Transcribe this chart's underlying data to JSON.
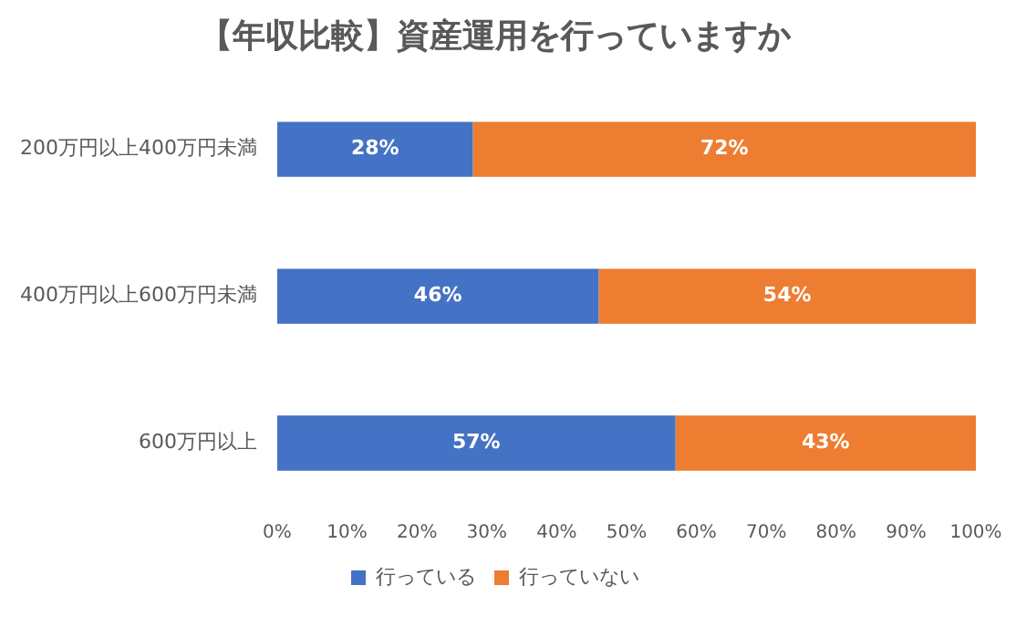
{
  "chart_data": {
    "type": "bar",
    "orientation": "horizontal",
    "stacked": true,
    "title": "【年収比較】資産運用を行っていますか",
    "categories": [
      "200万円以上400万円未満",
      "400万円以上600万円未満",
      "600万円以上"
    ],
    "series": [
      {
        "name": "行っている",
        "color": "#4472c4",
        "values": [
          28,
          46,
          57
        ],
        "value_labels": [
          "28%",
          "46%",
          "57%"
        ]
      },
      {
        "name": "行っていない",
        "color": "#ed7d31",
        "values": [
          72,
          54,
          43
        ],
        "value_labels": [
          "72%",
          "54%",
          "43%"
        ]
      }
    ],
    "xlim": [
      0,
      100
    ],
    "xticks": [
      {
        "value": 0,
        "label": "0%"
      },
      {
        "value": 10,
        "label": "10%"
      },
      {
        "value": 20,
        "label": "20%"
      },
      {
        "value": 30,
        "label": "30%"
      },
      {
        "value": 40,
        "label": "40%"
      },
      {
        "value": 50,
        "label": "50%"
      },
      {
        "value": 60,
        "label": "60%"
      },
      {
        "value": 70,
        "label": "70%"
      },
      {
        "value": 80,
        "label": "80%"
      },
      {
        "value": 90,
        "label": "90%"
      },
      {
        "value": 100,
        "label": "100%"
      }
    ],
    "legend": "bottom"
  }
}
